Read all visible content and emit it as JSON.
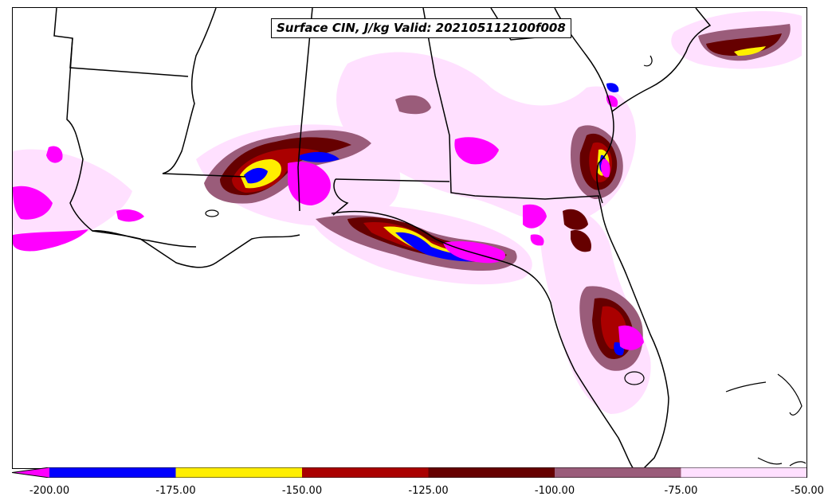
{
  "title": "Surface CIN, J/kg Valid: 202105112100f008",
  "colorbar": {
    "ticks": [
      "-200.00",
      "-175.00",
      "-150.00",
      "-125.00",
      "-100.00",
      "-75.00",
      "-50.00"
    ],
    "extend_color": "#ff00ff",
    "colors": [
      "#0000ff",
      "#ffee00",
      "#aa0000",
      "#660000",
      "#9a5c7a",
      "#ffe0ff"
    ]
  },
  "legend_colors": {
    "below_-200": "#ff00ff",
    "-200_to_-175": "#0000ff",
    "-175_to_-150": "#ffee00",
    "-150_to_-125": "#aa0000",
    "-125_to_-100": "#660000",
    "-100_to_-75": "#9a5c7a",
    "-75_to_-50": "#ffe0ff"
  }
}
